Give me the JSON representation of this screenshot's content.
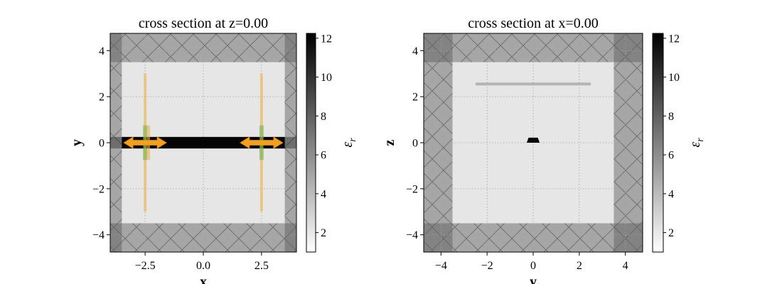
{
  "chart_data": [
    {
      "type": "heatmap",
      "title": "cross section at z=0.00",
      "xlabel": "x",
      "ylabel": "y",
      "xlim": [
        -4.0,
        4.0
      ],
      "ylim": [
        -4.75,
        4.75
      ],
      "xticks": [
        -2.5,
        0.0,
        2.5
      ],
      "xtick_labels": [
        "−2.5",
        "0.0",
        "2.5"
      ],
      "yticks": [
        -4,
        -2,
        0,
        2,
        4
      ],
      "ytick_labels": [
        "−4",
        "−2",
        "0",
        "2",
        "4"
      ],
      "grid": true,
      "colorbar": {
        "label": "εr",
        "range": [
          1,
          12.25
        ],
        "ticks": [
          2,
          4,
          6,
          8,
          10,
          12
        ],
        "tick_labels": [
          "2",
          "4",
          "6",
          "8",
          "10",
          "12"
        ]
      },
      "background_permittivity": 2.1,
      "pml": {
        "x_inner": 3.5,
        "y_inner": 3.5
      },
      "structures": [
        {
          "kind": "waveguide",
          "x": [
            -3.5,
            3.5
          ],
          "y": [
            -0.25,
            0.25
          ],
          "permittivity": 12
        }
      ],
      "monitors": [
        {
          "kind": "flux",
          "x": -2.5,
          "y": [
            -3,
            3
          ]
        },
        {
          "kind": "flux",
          "x": 2.5,
          "y": [
            -3,
            3
          ]
        }
      ],
      "sources": [
        {
          "kind": "mode",
          "x": -2.5,
          "y": [
            -0.75,
            0.75
          ],
          "offset_x": 0.15
        },
        {
          "kind": "mode",
          "x": 2.5,
          "y": [
            -0.75,
            0.75
          ],
          "offset_x": 0
        }
      ],
      "arrows": [
        {
          "x_center": -2.5,
          "y": 0
        },
        {
          "x_center": 2.5,
          "y": 0
        }
      ]
    },
    {
      "type": "heatmap",
      "title": "cross section at x=0.00",
      "xlabel": "y",
      "ylabel": "z",
      "xlim": [
        -4.75,
        4.75
      ],
      "ylim": [
        -4.75,
        4.75
      ],
      "xticks": [
        -4,
        -2,
        0,
        2,
        4
      ],
      "xtick_labels": [
        "−4",
        "−2",
        "0",
        "2",
        "4"
      ],
      "yticks": [
        -4,
        -2,
        0,
        2,
        4
      ],
      "ytick_labels": [
        "−4",
        "−2",
        "0",
        "2",
        "4"
      ],
      "grid": true,
      "colorbar": {
        "label": "εr",
        "range": [
          1,
          12.25
        ],
        "ticks": [
          2,
          4,
          6,
          8,
          10,
          12
        ],
        "tick_labels": [
          "2",
          "4",
          "6",
          "8",
          "10",
          "12"
        ]
      },
      "background_permittivity": 2.1,
      "pml": {
        "x_inner": 3.5,
        "y_inner": 3.5
      },
      "structures": [
        {
          "kind": "waveguide-core",
          "y_top": [
            -0.2,
            0.2
          ],
          "y_bottom": [
            -0.28,
            0.28
          ],
          "z": [
            0,
            0.22
          ],
          "permittivity": 12
        }
      ],
      "monitors": [
        {
          "kind": "flux",
          "y": [
            -2.5,
            2.5
          ],
          "z": 2.55
        }
      ]
    }
  ]
}
